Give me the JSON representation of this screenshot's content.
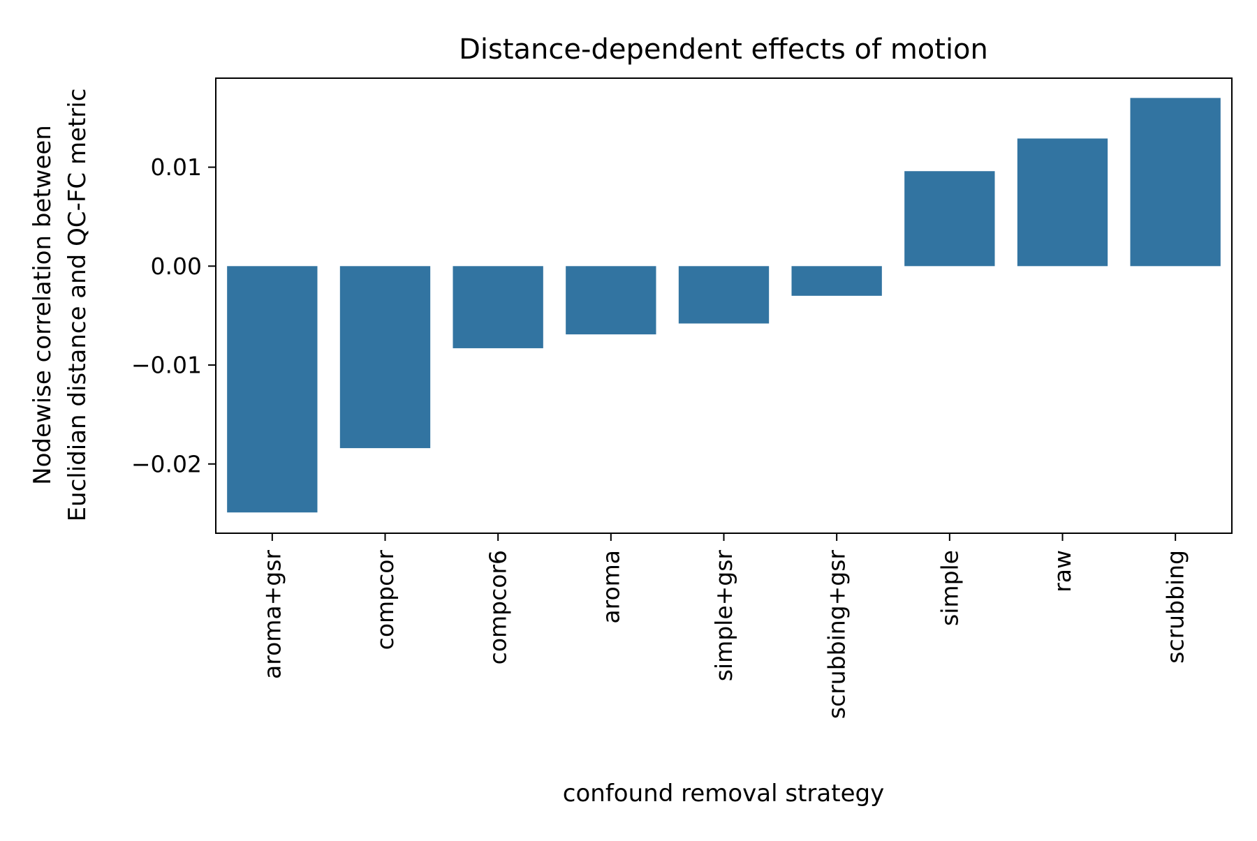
{
  "chart_data": {
    "type": "bar",
    "title": "Distance-dependent effects of motion",
    "xlabel": "confound removal strategy",
    "ylabel_lines": [
      "Nodewise correlation between",
      "Euclidian distance and QC-FC metric"
    ],
    "categories": [
      "aroma+gsr",
      "compcor",
      "compcor6",
      "aroma",
      "simple+gsr",
      "scrubbing+gsr",
      "simple",
      "raw",
      "scrubbing"
    ],
    "values": [
      -0.0249,
      -0.0184,
      -0.0083,
      -0.0069,
      -0.0058,
      -0.003,
      0.0096,
      0.0129,
      0.017
    ],
    "ylim": [
      -0.027,
      0.019
    ],
    "yticks": [
      0.01,
      0.0,
      -0.01,
      -0.02
    ],
    "ytick_labels": [
      "0.01",
      "0.00",
      "−0.01",
      "−0.02"
    ],
    "bar_color": "#3274a1",
    "grid": false,
    "legend": "none"
  }
}
